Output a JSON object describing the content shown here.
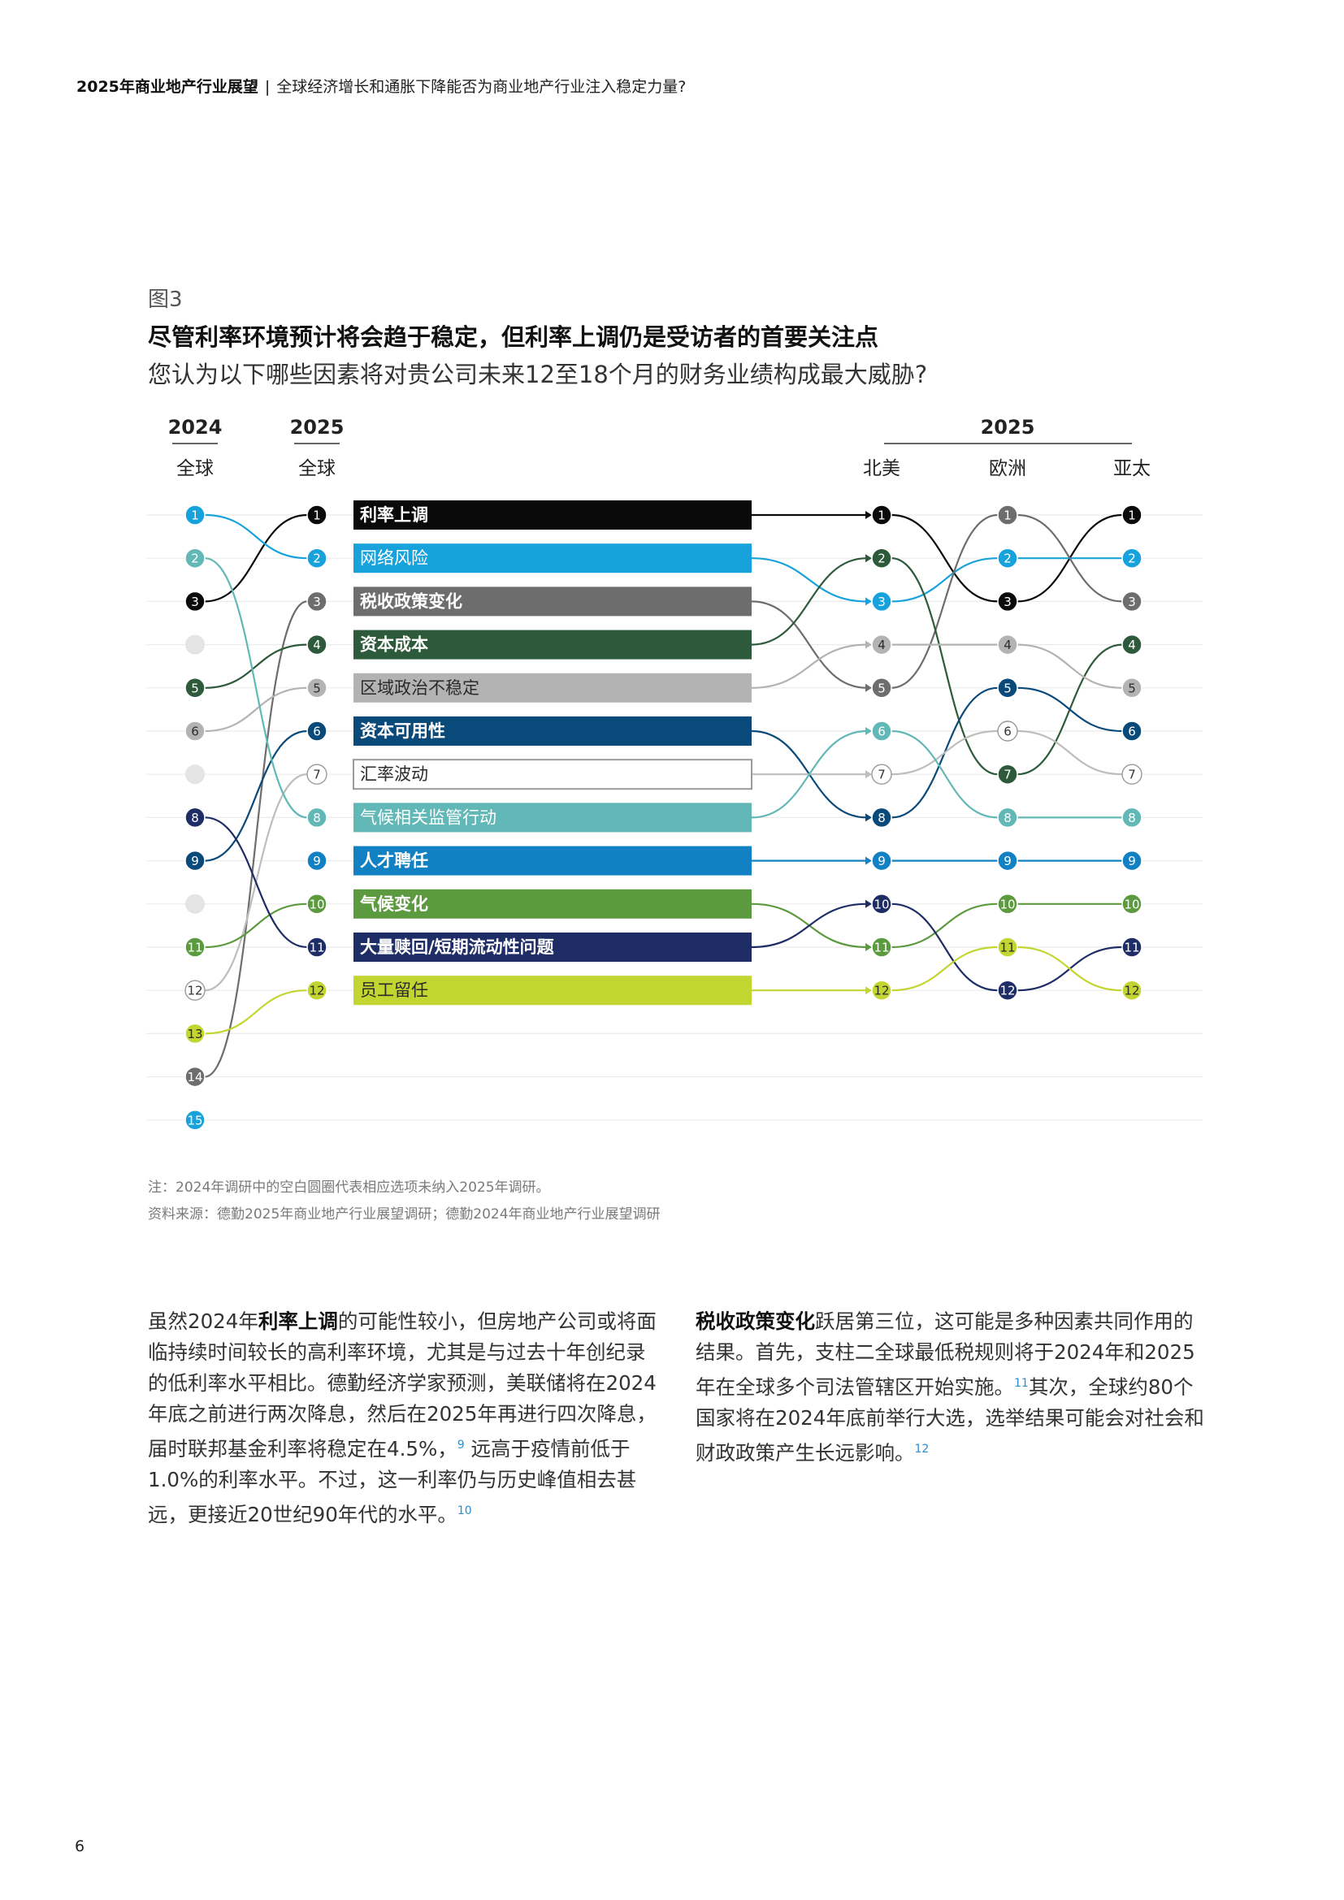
{
  "header": {
    "title": "2025年商业地产行业展望",
    "separator": "|",
    "subtitle": "全球经济增长和通胀下降能否为商业地产行业注入稳定力量?"
  },
  "figure": {
    "label": "图3",
    "title": "尽管利率环境预计将会趋于稳定，但利率上调仍是受访者的首要关注点",
    "subtitle": "您认为以下哪些因素将对贵公司未来12至18个月的财务业绩构成最大威胁?"
  },
  "chart_data": {
    "type": "bump",
    "column_headers": {
      "y2024": "2024",
      "y2024_sub": "全球",
      "y2025": "2025",
      "y2025_sub": "全球",
      "regional_group": "2025",
      "na": "北美",
      "eu": "欧洲",
      "ap": "亚太"
    },
    "factors": [
      {
        "name": "利率上调",
        "color": "#0a0a0a",
        "text": "#ffffff",
        "bold": true,
        "outline": false,
        "rank2024": 3,
        "global": 1,
        "na": 1,
        "eu": 3,
        "ap": 1
      },
      {
        "name": "网络风险",
        "color": "#18a2dc",
        "text": "#ffffff",
        "bold": false,
        "outline": false,
        "rank2024": 1,
        "global": 2,
        "na": 3,
        "eu": 2,
        "ap": 2
      },
      {
        "name": "税收政策变化",
        "color": "#6d6d6d",
        "text": "#ffffff",
        "bold": true,
        "outline": false,
        "rank2024": 14,
        "global": 3,
        "na": 5,
        "eu": 1,
        "ap": 3
      },
      {
        "name": "资本成本",
        "color": "#2d5a3a",
        "text": "#ffffff",
        "bold": true,
        "outline": false,
        "rank2024": 5,
        "global": 4,
        "na": 2,
        "eu": 7,
        "ap": 4
      },
      {
        "name": "区域政治不稳定",
        "color": "#b3b3b3",
        "text": "#2b2b2b",
        "bold": false,
        "outline": false,
        "rank2024": 6,
        "global": 5,
        "na": 4,
        "eu": 4,
        "ap": 5
      },
      {
        "name": "资本可用性",
        "color": "#0a4a7a",
        "text": "#ffffff",
        "bold": true,
        "outline": false,
        "rank2024": 9,
        "global": 6,
        "na": 8,
        "eu": 5,
        "ap": 6
      },
      {
        "name": "汇率波动",
        "color": "#ffffff",
        "text": "#2b2b2b",
        "bold": false,
        "outline": true,
        "rank2024": 12,
        "global": 7,
        "na": 7,
        "eu": 6,
        "ap": 7
      },
      {
        "name": "气候相关监管行动",
        "color": "#62b8b6",
        "text": "#ffffff",
        "bold": false,
        "outline": false,
        "rank2024": 2,
        "global": 8,
        "na": 6,
        "eu": 8,
        "ap": 8
      },
      {
        "name": "人才聘任",
        "color": "#1281c4",
        "text": "#ffffff",
        "bold": true,
        "outline": false,
        "rank2024": null,
        "global": 9,
        "na": 9,
        "eu": 9,
        "ap": 9
      },
      {
        "name": "气候变化",
        "color": "#5b9a3e",
        "text": "#ffffff",
        "bold": true,
        "outline": false,
        "rank2024": 11,
        "global": 10,
        "na": 11,
        "eu": 10,
        "ap": 10
      },
      {
        "name": "大量赎回/短期流动性问题",
        "color": "#1f2d66",
        "text": "#ffffff",
        "bold": true,
        "outline": false,
        "rank2024": 8,
        "global": 11,
        "na": 10,
        "eu": 12,
        "ap": 11
      },
      {
        "name": "员工留任",
        "color": "#c3d530",
        "text": "#2b2b2b",
        "bold": false,
        "outline": false,
        "rank2024": 13,
        "global": 12,
        "na": 12,
        "eu": 11,
        "ap": 12
      }
    ],
    "ranks_2024": [
      1,
      2,
      3,
      4,
      5,
      6,
      7,
      8,
      9,
      10,
      11,
      12,
      13,
      14,
      15
    ],
    "empty_2024_ranks": [
      4,
      7,
      10
    ],
    "rank_2024_15_color": "#18a2dc"
  },
  "notes": {
    "note": "注：2024年调研中的空白圆圈代表相应选项未纳入2025年调研。",
    "source": "资料来源：德勤2025年商业地产行业展望调研；德勤2024年商业地产行业展望调研"
  },
  "body_left": {
    "p1_before": "虽然2024年",
    "p1_bold": "利率上调",
    "p1_after": "的可能性较小，但房地产公司或将面临持续时间较长的高利率环境，尤其是与过去十年创纪录的低利率水平相比。德勤经济学家预测，美联储将在2024年底之前进行两次降息，然后在2025年再进行四次降息，届时联邦基金利率将稳定在4.5%，",
    "sup1": "9",
    "p1_after2": " 远高于疫情前低于1.0%的利率水平。不过，这一利率仍与历史峰值相去甚远，更接近20世纪90年代的水平。",
    "sup2": "10"
  },
  "body_right": {
    "p_bold": "税收政策变化",
    "p_text1": "跃居第三位，这可能是多种因素共同作用的结果。首先，支柱二全球最低税规则将于2024年和2025年在全球多个司法管辖区开始实施。",
    "sup1": "11",
    "p_text2": "其次，全球约80个国家将在2024年底前举行大选，选举结果可能会对社会和财政政策产生长远影响。",
    "sup2": "12"
  },
  "page_number": "6"
}
